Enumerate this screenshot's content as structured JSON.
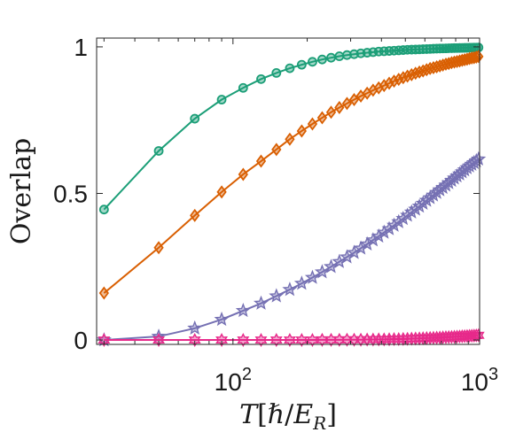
{
  "chart_data": {
    "type": "line",
    "xlabel": "T[ℏ/E_R]",
    "ylabel": "Overlap",
    "xscale": "log",
    "xlim": [
      28,
      1000
    ],
    "ylim": [
      -0.015,
      1.03
    ],
    "x_ticks": [
      {
        "value": 100,
        "label": "10",
        "exp": "2"
      },
      {
        "value": 1000,
        "label": "10",
        "exp": "3"
      }
    ],
    "y_ticks": [
      {
        "value": 0,
        "label": "0"
      },
      {
        "value": 0.5,
        "label": "0.5"
      },
      {
        "value": 1,
        "label": "1"
      }
    ],
    "grid": false,
    "x": [
      30,
      50,
      70,
      90,
      110,
      130,
      150,
      170,
      190,
      210,
      230,
      250,
      270,
      290,
      310,
      330,
      350,
      370,
      390,
      410,
      430,
      450,
      470,
      490,
      510,
      530,
      550,
      570,
      590,
      610,
      630,
      650,
      670,
      690,
      710,
      730,
      750,
      770,
      790,
      810,
      830,
      850,
      870,
      890,
      910,
      930,
      950,
      970,
      990
    ],
    "series": [
      {
        "color": "#1b9e77",
        "marker": "circle",
        "values": [
          0.445,
          0.645,
          0.755,
          0.82,
          0.86,
          0.89,
          0.911,
          0.927,
          0.939,
          0.949,
          0.957,
          0.963,
          0.968,
          0.972,
          0.975,
          0.978,
          0.98,
          0.982,
          0.984,
          0.985,
          0.986,
          0.987,
          0.988,
          0.989,
          0.99,
          0.9905,
          0.991,
          0.9915,
          0.992,
          0.9925,
          0.993,
          0.9935,
          0.994,
          0.9943,
          0.9946,
          0.9949,
          0.9952,
          0.9955,
          0.9958,
          0.996,
          0.9962,
          0.9964,
          0.9966,
          0.9968,
          0.997,
          0.9972,
          0.9974,
          0.9976,
          0.9978
        ]
      },
      {
        "color": "#d95f02",
        "marker": "diamond",
        "values": [
          0.16,
          0.315,
          0.425,
          0.505,
          0.565,
          0.61,
          0.65,
          0.685,
          0.713,
          0.737,
          0.758,
          0.777,
          0.793,
          0.807,
          0.82,
          0.832,
          0.842,
          0.852,
          0.86,
          0.868,
          0.876,
          0.883,
          0.889,
          0.895,
          0.9,
          0.905,
          0.91,
          0.914,
          0.918,
          0.922,
          0.926,
          0.929,
          0.932,
          0.935,
          0.938,
          0.941,
          0.943,
          0.946,
          0.948,
          0.95,
          0.952,
          0.954,
          0.956,
          0.958,
          0.96,
          0.962,
          0.963,
          0.965,
          0.967
        ]
      },
      {
        "color": "#7570b3",
        "marker": "star",
        "values": [
          0.0,
          0.012,
          0.04,
          0.07,
          0.1,
          0.125,
          0.15,
          0.172,
          0.193,
          0.213,
          0.232,
          0.25,
          0.267,
          0.283,
          0.298,
          0.313,
          0.327,
          0.341,
          0.354,
          0.367,
          0.379,
          0.391,
          0.403,
          0.414,
          0.425,
          0.436,
          0.446,
          0.456,
          0.466,
          0.476,
          0.485,
          0.494,
          0.503,
          0.512,
          0.52,
          0.528,
          0.536,
          0.544,
          0.552,
          0.559,
          0.566,
          0.573,
          0.58,
          0.587,
          0.593,
          0.599,
          0.605,
          0.611,
          0.617
        ]
      },
      {
        "color": "#e7298a",
        "marker": "hexagram",
        "values": [
          0.0,
          0.0,
          0.0,
          0.0,
          0.0,
          0.0,
          0.0,
          0.0,
          0.0,
          0.0,
          0.0005,
          0.0005,
          0.0005,
          0.001,
          0.001,
          0.001,
          0.0015,
          0.0015,
          0.002,
          0.002,
          0.0025,
          0.003,
          0.003,
          0.0035,
          0.004,
          0.0045,
          0.005,
          0.0055,
          0.006,
          0.0065,
          0.007,
          0.0075,
          0.008,
          0.0085,
          0.009,
          0.0095,
          0.01,
          0.0105,
          0.011,
          0.0115,
          0.012,
          0.0125,
          0.013,
          0.0135,
          0.014,
          0.0145,
          0.015,
          0.0155,
          0.016
        ]
      }
    ]
  }
}
